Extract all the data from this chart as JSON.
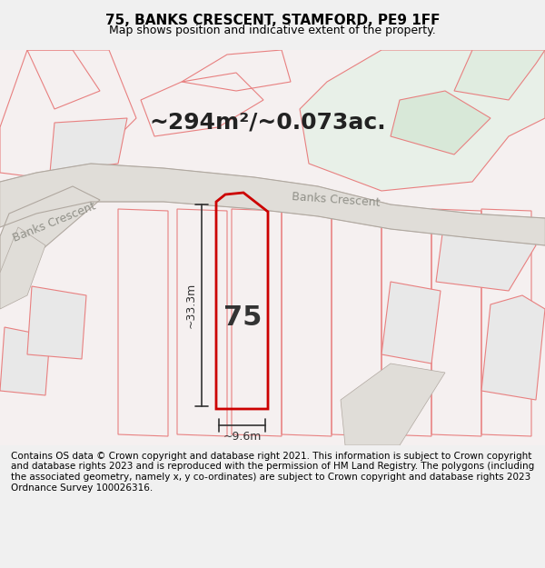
{
  "title_line1": "75, BANKS CRESCENT, STAMFORD, PE9 1FF",
  "title_line2": "Map shows position and indicative extent of the property.",
  "area_text": "~294m²/~0.073ac.",
  "label_75": "75",
  "dim_width": "~9.6m",
  "dim_height": "~33.3m",
  "road_label1": "Banks Crescent",
  "road_label2": "Banks Crescent",
  "footer_text": "Contains OS data © Crown copyright and database right 2021. This information is subject to Crown copyright and database rights 2023 and is reproduced with the permission of HM Land Registry. The polygons (including the associated geometry, namely x, y co-ordinates) are subject to Crown copyright and database rights 2023 Ordnance Survey 100026316.",
  "bg_color": "#f5f0f0",
  "map_bg": "#ffffff",
  "road_fill": "#e8e8e8",
  "green_fill": "#e8f0e8",
  "plot_stroke": "#cc0000",
  "other_stroke": "#e88080",
  "title_fontsize": 11,
  "subtitle_fontsize": 9,
  "footer_fontsize": 7.5,
  "figsize": [
    6.0,
    6.25
  ]
}
